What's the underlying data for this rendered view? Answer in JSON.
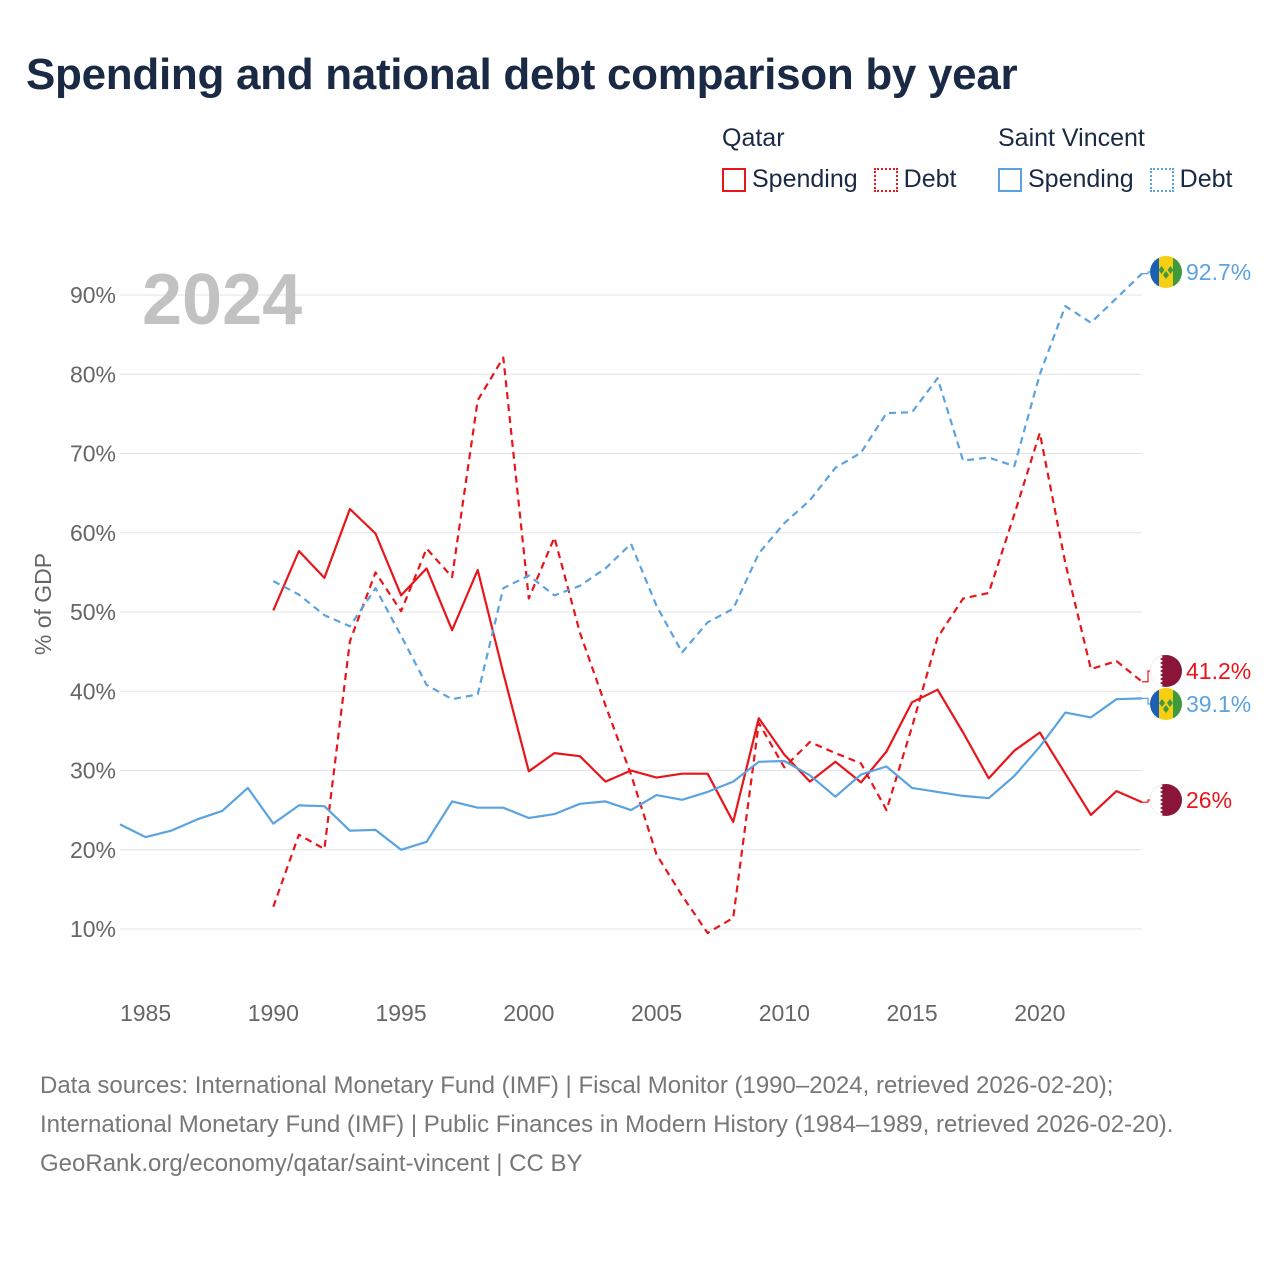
{
  "title": "Spending and national debt comparison by year",
  "legend": {
    "qatar": {
      "country": "Qatar",
      "spending": "Spending",
      "debt": "Debt"
    },
    "svg": {
      "country": "Saint Vincent",
      "spending": "Spending",
      "debt": "Debt"
    }
  },
  "colors": {
    "qatar": "#e8151b",
    "svg": "#5ba3e0",
    "title": "#1b2a44",
    "grid": "#e3e3e3",
    "axis_text": "#666666",
    "year_watermark": "#c2c2c2"
  },
  "footer": {
    "sources": "Data sources: International Monetary Fund (IMF) | Fiscal Monitor (1990–2024, retrieved 2026-02-20); International Monetary Fund (IMF) | Public Finances in Modern History (1984–1989, retrieved 2026-02-20).",
    "attribution": "GeoRank.org/economy/qatar/saint-vincent | CC BY"
  },
  "chart_data": {
    "type": "line",
    "title": "Spending and national debt comparison by year",
    "watermark_year": "2024",
    "xlabel": "",
    "ylabel": "% of GDP",
    "xlim": [
      1984,
      2024
    ],
    "ylim": [
      4,
      98
    ],
    "x_ticks": [
      1985,
      1990,
      1995,
      2000,
      2005,
      2010,
      2015,
      2020
    ],
    "y_ticks": [
      10,
      20,
      30,
      40,
      50,
      60,
      70,
      80,
      90
    ],
    "y_tick_labels": [
      "10%",
      "20%",
      "30%",
      "40%",
      "50%",
      "60%",
      "70%",
      "80%",
      "90%"
    ],
    "series": [
      {
        "name": "Qatar Spending",
        "country": "qatar",
        "style": "solid",
        "end_label": "26%",
        "flag": "qatar-flag-icon",
        "x": [
          1990,
          1991,
          1992,
          1993,
          1994,
          1995,
          1996,
          1997,
          1998,
          1999,
          2000,
          2001,
          2002,
          2003,
          2004,
          2005,
          2006,
          2007,
          2008,
          2009,
          2010,
          2011,
          2012,
          2013,
          2014,
          2015,
          2016,
          2017,
          2018,
          2019,
          2020,
          2021,
          2022,
          2023,
          2024
        ],
        "values": [
          50.2,
          57.7,
          54.3,
          63.0,
          59.9,
          52.1,
          55.5,
          47.7,
          55.3,
          42.3,
          29.9,
          32.2,
          31.8,
          28.6,
          30.0,
          29.1,
          29.6,
          29.6,
          23.5,
          36.6,
          32.0,
          28.6,
          31.1,
          28.5,
          32.4,
          38.6,
          40.2,
          34.8,
          29.0,
          32.5,
          34.8,
          29.6,
          24.4,
          27.4,
          26.0
        ]
      },
      {
        "name": "Qatar Debt",
        "country": "qatar",
        "style": "dashed",
        "end_label": "41.2%",
        "flag": "qatar-flag-icon",
        "x": [
          1990,
          1991,
          1992,
          1993,
          1994,
          1995,
          1996,
          1997,
          1998,
          1999,
          2000,
          2001,
          2002,
          2003,
          2004,
          2005,
          2006,
          2007,
          2008,
          2009,
          2010,
          2011,
          2012,
          2013,
          2014,
          2015,
          2016,
          2017,
          2018,
          2019,
          2020,
          2021,
          2022,
          2023,
          2024
        ],
        "values": [
          12.8,
          21.9,
          20.1,
          46.3,
          55.0,
          50.1,
          58.0,
          54.4,
          76.7,
          82.1,
          51.7,
          59.4,
          47.4,
          38.2,
          29.5,
          19.4,
          14.2,
          9.5,
          11.4,
          36.0,
          30.4,
          33.6,
          32.2,
          30.9,
          25.0,
          35.5,
          46.8,
          51.7,
          52.4,
          62.3,
          72.6,
          56.2,
          42.8,
          43.8,
          41.2
        ]
      },
      {
        "name": "Saint Vincent Spending",
        "country": "svg",
        "style": "solid",
        "end_label": "39.1%",
        "flag": "saint-vincent-flag-icon",
        "x": [
          1984,
          1985,
          1986,
          1987,
          1988,
          1989,
          1990,
          1991,
          1992,
          1993,
          1994,
          1995,
          1996,
          1997,
          1998,
          1999,
          2000,
          2001,
          2002,
          2003,
          2004,
          2005,
          2006,
          2007,
          2008,
          2009,
          2010,
          2011,
          2012,
          2013,
          2014,
          2015,
          2016,
          2017,
          2018,
          2019,
          2020,
          2021,
          2022,
          2023,
          2024
        ],
        "values": [
          23.2,
          21.6,
          22.4,
          23.8,
          24.9,
          27.8,
          23.3,
          25.6,
          25.5,
          22.4,
          22.5,
          20.0,
          21.0,
          26.1,
          25.3,
          25.3,
          24.0,
          24.5,
          25.8,
          26.1,
          25.0,
          26.9,
          26.3,
          27.3,
          28.6,
          31.1,
          31.2,
          29.4,
          26.7,
          29.5,
          30.5,
          27.8,
          27.3,
          26.8,
          26.5,
          29.3,
          33.0,
          37.3,
          36.7,
          39.0,
          39.1
        ]
      },
      {
        "name": "Saint Vincent Debt",
        "country": "svg",
        "style": "dashed",
        "end_label": "92.7%",
        "flag": "saint-vincent-flag-icon",
        "x": [
          1990,
          1991,
          1992,
          1993,
          1994,
          1995,
          1996,
          1997,
          1998,
          1999,
          2000,
          2001,
          2002,
          2003,
          2004,
          2005,
          2006,
          2007,
          2008,
          2009,
          2010,
          2011,
          2012,
          2013,
          2014,
          2015,
          2016,
          2017,
          2018,
          2019,
          2020,
          2021,
          2022,
          2023,
          2024
        ],
        "values": [
          53.9,
          52.2,
          49.6,
          48.2,
          53.0,
          47.0,
          40.8,
          39.0,
          39.6,
          53.0,
          54.6,
          52.1,
          53.3,
          55.5,
          58.6,
          50.8,
          44.9,
          48.7,
          50.4,
          57.4,
          61.2,
          64.1,
          68.2,
          70.1,
          75.1,
          75.2,
          79.5,
          69.1,
          69.5,
          68.4,
          80.0,
          88.6,
          86.5,
          89.6,
          92.7
        ]
      }
    ]
  }
}
